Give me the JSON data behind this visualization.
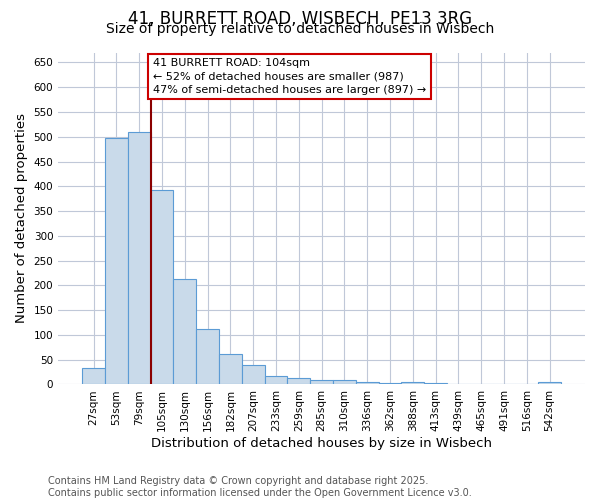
{
  "title": "41, BURRETT ROAD, WISBECH, PE13 3RG",
  "subtitle": "Size of property relative to detached houses in Wisbech",
  "xlabel": "Distribution of detached houses by size in Wisbech",
  "ylabel": "Number of detached properties",
  "categories": [
    "27sqm",
    "53sqm",
    "79sqm",
    "105sqm",
    "130sqm",
    "156sqm",
    "182sqm",
    "207sqm",
    "233sqm",
    "259sqm",
    "285sqm",
    "310sqm",
    "336sqm",
    "362sqm",
    "388sqm",
    "413sqm",
    "439sqm",
    "465sqm",
    "491sqm",
    "516sqm",
    "542sqm"
  ],
  "values": [
    33,
    498,
    510,
    393,
    213,
    111,
    61,
    39,
    18,
    14,
    9,
    9,
    4,
    3,
    4,
    2,
    1,
    1,
    0,
    1,
    5
  ],
  "bar_color": "#c9daea",
  "bar_edge_color": "#5b9bd5",
  "vline_index": 3,
  "vline_color": "#8b0000",
  "annotation_text": "41 BURRETT ROAD: 104sqm\n← 52% of detached houses are smaller (987)\n47% of semi-detached houses are larger (897) →",
  "annotation_box_color": "#ffffff",
  "annotation_box_edge_color": "#cc0000",
  "ylim": [
    0,
    670
  ],
  "yticks": [
    0,
    50,
    100,
    150,
    200,
    250,
    300,
    350,
    400,
    450,
    500,
    550,
    600,
    650
  ],
  "footnote": "Contains HM Land Registry data © Crown copyright and database right 2025.\nContains public sector information licensed under the Open Government Licence v3.0.",
  "bg_color": "#ffffff",
  "grid_color": "#c0c8d8",
  "title_fontsize": 12,
  "subtitle_fontsize": 10,
  "axis_label_fontsize": 9.5,
  "tick_fontsize": 7.5,
  "annotation_fontsize": 8,
  "footnote_fontsize": 7
}
